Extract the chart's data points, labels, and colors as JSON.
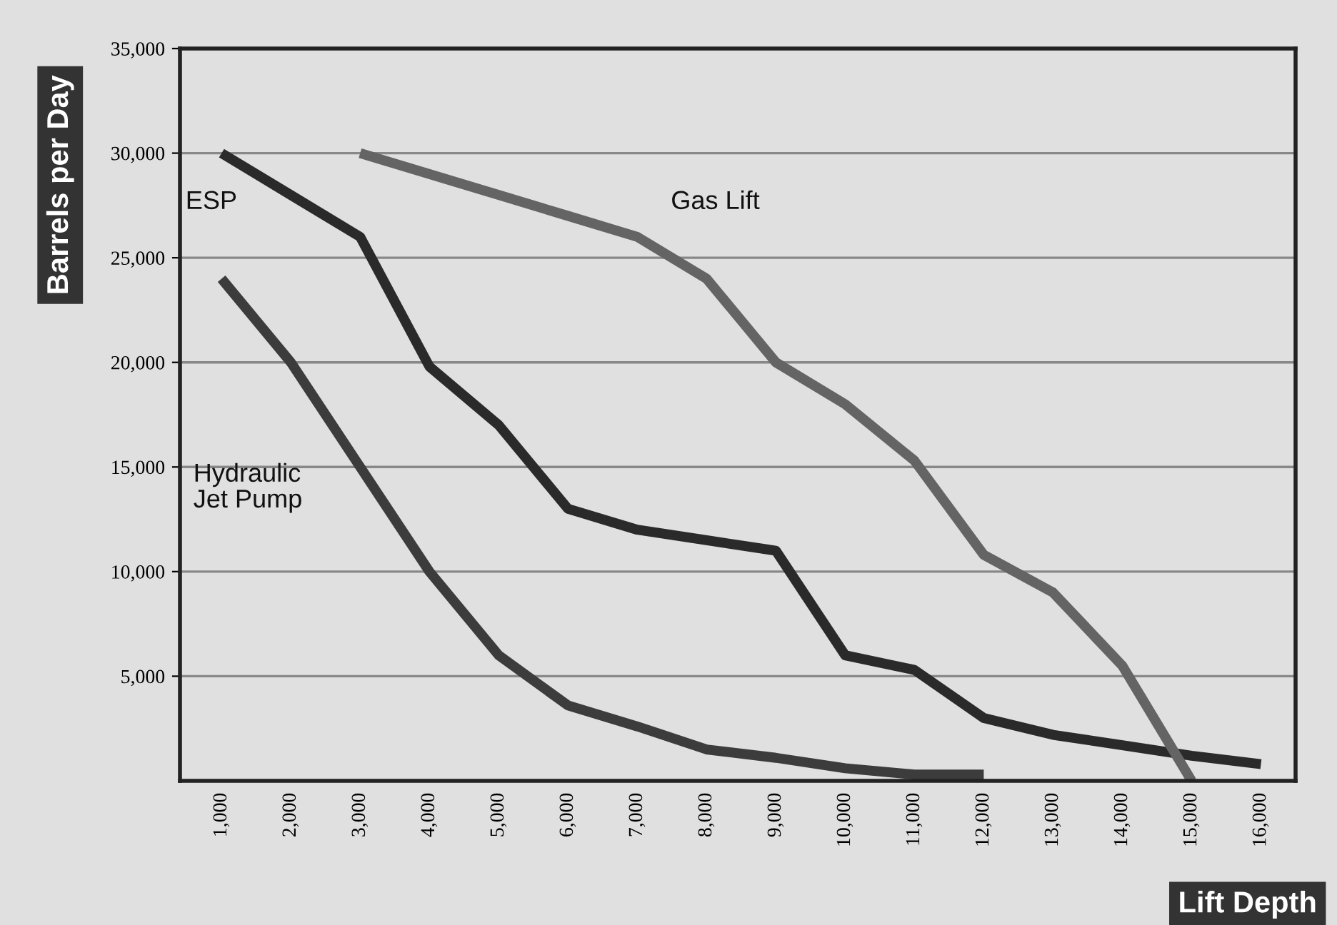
{
  "chart_data": {
    "type": "line",
    "xlabel": "Lift Depth",
    "ylabel": "Barrels per Day",
    "categories": [
      "1,000",
      "2,000",
      "3,000",
      "4,000",
      "5,000",
      "6,000",
      "7,000",
      "8,000",
      "9,000",
      "10,000",
      "11,000",
      "12,000",
      "13,000",
      "14,000",
      "15,000",
      "16,000"
    ],
    "series": [
      {
        "name": "ESP",
        "color": "#2a2a2a",
        "values": [
          30000,
          28000,
          26000,
          19800,
          17000,
          13000,
          12000,
          11500,
          11000,
          6000,
          5300,
          3000,
          2200,
          1700,
          1200,
          800
        ]
      },
      {
        "name": "Hydraulic\nJet Pump",
        "color": "#3c3c3c",
        "values": [
          24000,
          20000,
          15000,
          10000,
          6000,
          3600,
          2600,
          1500,
          1100,
          600,
          300,
          300,
          null,
          null,
          null,
          null
        ]
      },
      {
        "name": "Gas Lift",
        "color": "#646464",
        "values": [
          null,
          null,
          30000,
          29000,
          28000,
          27000,
          26000,
          24000,
          20000,
          18000,
          15300,
          10800,
          9000,
          5500,
          0,
          null
        ]
      }
    ],
    "ylim": [
      0,
      35000
    ],
    "yticks": [
      {
        "value": 5000,
        "label": "5,000"
      },
      {
        "value": 10000,
        "label": "10,000"
      },
      {
        "value": 15000,
        "label": "15,000"
      },
      {
        "value": 20000,
        "label": "20,000"
      },
      {
        "value": 25000,
        "label": "25,000"
      },
      {
        "value": 30000,
        "label": "30,000"
      },
      {
        "value": 35000,
        "label": "35,000"
      }
    ],
    "grid": "y",
    "marker": "none",
    "line_style": "solid"
  }
}
